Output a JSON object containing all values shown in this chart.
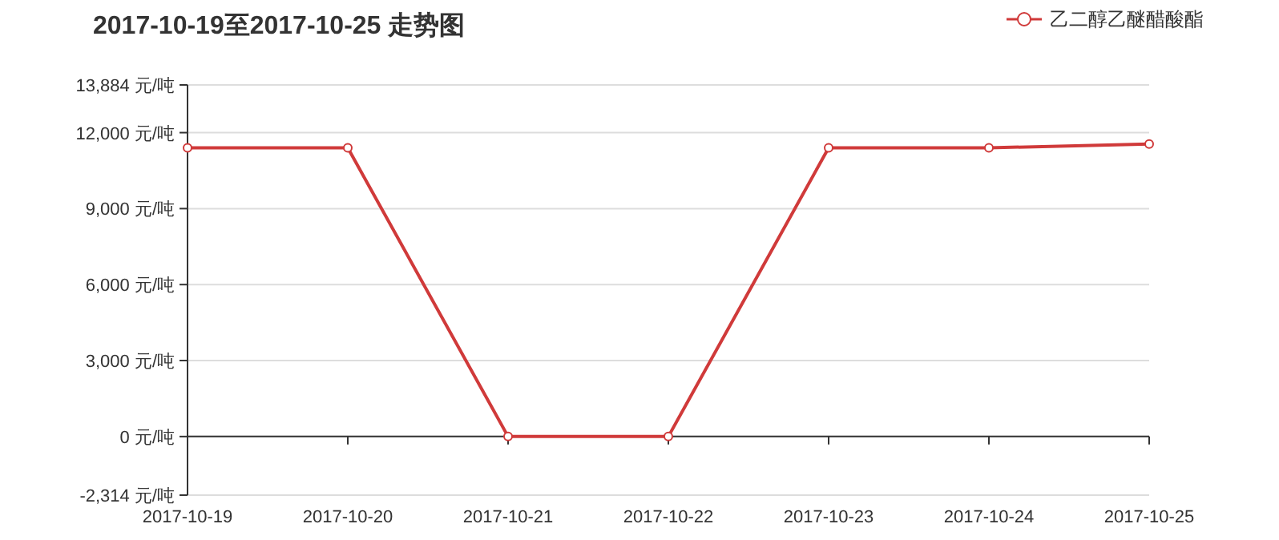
{
  "chart_data": {
    "type": "line",
    "title": "2017-10-19至2017-10-25 走势图",
    "categories": [
      "2017-10-19",
      "2017-10-20",
      "2017-10-21",
      "2017-10-22",
      "2017-10-23",
      "2017-10-24",
      "2017-10-25"
    ],
    "series": [
      {
        "name": "乙二醇乙醚醋酸酯",
        "color": "#d03a3a",
        "values": [
          11400,
          11400,
          0,
          0,
          11400,
          11400,
          11550
        ]
      }
    ],
    "ylim": [
      -2314,
      13884
    ],
    "yticks": [
      {
        "value": -2314,
        "label": "-2,314 元/吨"
      },
      {
        "value": 0,
        "label": "0 元/吨"
      },
      {
        "value": 3000,
        "label": "3,000 元/吨"
      },
      {
        "value": 6000,
        "label": "6,000 元/吨"
      },
      {
        "value": 9000,
        "label": "9,000 元/吨"
      },
      {
        "value": 12000,
        "label": "12,000 元/吨"
      },
      {
        "value": 13884,
        "label": "13,884 元/吨"
      }
    ],
    "grid": "y",
    "legend": "top right",
    "marker": "circle",
    "line_style": "solid"
  }
}
